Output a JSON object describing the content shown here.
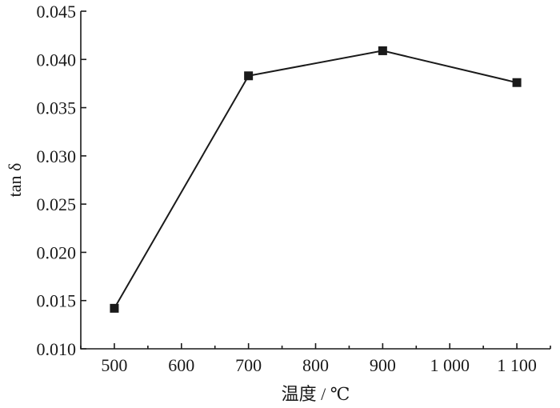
{
  "chart_data": {
    "type": "line",
    "xlabel": "温度 / ℃",
    "ylabel": "tan δ",
    "xlim": [
      450,
      1150
    ],
    "ylim": [
      0.01,
      0.045
    ],
    "x_ticks": [
      500,
      600,
      700,
      800,
      900,
      1000,
      1100
    ],
    "x_tick_labels": [
      "500",
      "600",
      "700",
      "800",
      "900",
      "1 000",
      "1 100"
    ],
    "y_ticks": [
      0.01,
      0.015,
      0.02,
      0.025,
      0.03,
      0.035,
      0.04,
      0.045
    ],
    "y_tick_labels": [
      "0.010",
      "0.015",
      "0.020",
      "0.025",
      "0.030",
      "0.035",
      "0.040",
      "0.045"
    ],
    "grid": false,
    "marker": "square",
    "series": [
      {
        "x": [
          500,
          700,
          900,
          1100
        ],
        "values": [
          0.0142,
          0.0383,
          0.0409,
          0.0376
        ]
      }
    ]
  }
}
